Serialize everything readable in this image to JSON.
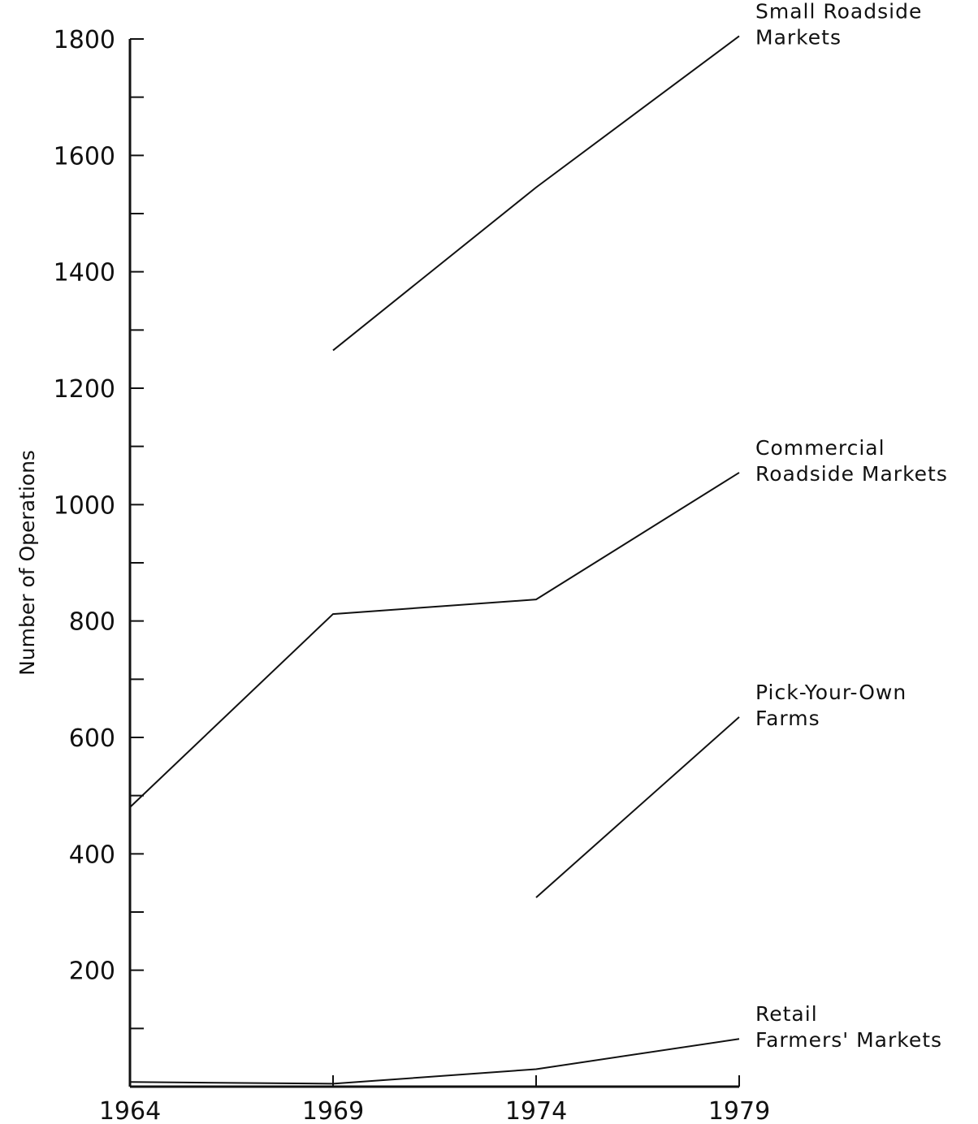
{
  "chart_data": {
    "type": "line",
    "title": "",
    "xlabel": "",
    "ylabel": "Number of Operations",
    "x": [
      1964,
      1969,
      1974,
      1979
    ],
    "xlim": [
      1964,
      1979
    ],
    "ylim": [
      0,
      1800
    ],
    "yticks_labeled": [
      200,
      400,
      600,
      800,
      1000,
      1200,
      1400,
      1600,
      1800
    ],
    "yticks_minor": [
      100,
      300,
      500,
      700,
      900,
      1100,
      1300,
      1500,
      1700
    ],
    "grid": false,
    "legend": "inline labels at line ends (right)",
    "series": [
      {
        "name": [
          "Small Roadside",
          "Markets"
        ],
        "x": [
          1969,
          1974,
          1979
        ],
        "values": [
          1265,
          1545,
          1805
        ]
      },
      {
        "name": [
          "Commercial",
          "Roadside Markets"
        ],
        "x": [
          1964,
          1969,
          1974,
          1979
        ],
        "values": [
          480,
          812,
          837,
          1055
        ]
      },
      {
        "name": [
          "Pick-Your-Own",
          "Farms"
        ],
        "x": [
          1974,
          1979
        ],
        "values": [
          325,
          635
        ]
      },
      {
        "name": [
          "Retail",
          "Farmers' Markets"
        ],
        "x": [
          1964,
          1969,
          1974,
          1979
        ],
        "values": [
          8,
          5,
          30,
          82
        ]
      }
    ]
  }
}
